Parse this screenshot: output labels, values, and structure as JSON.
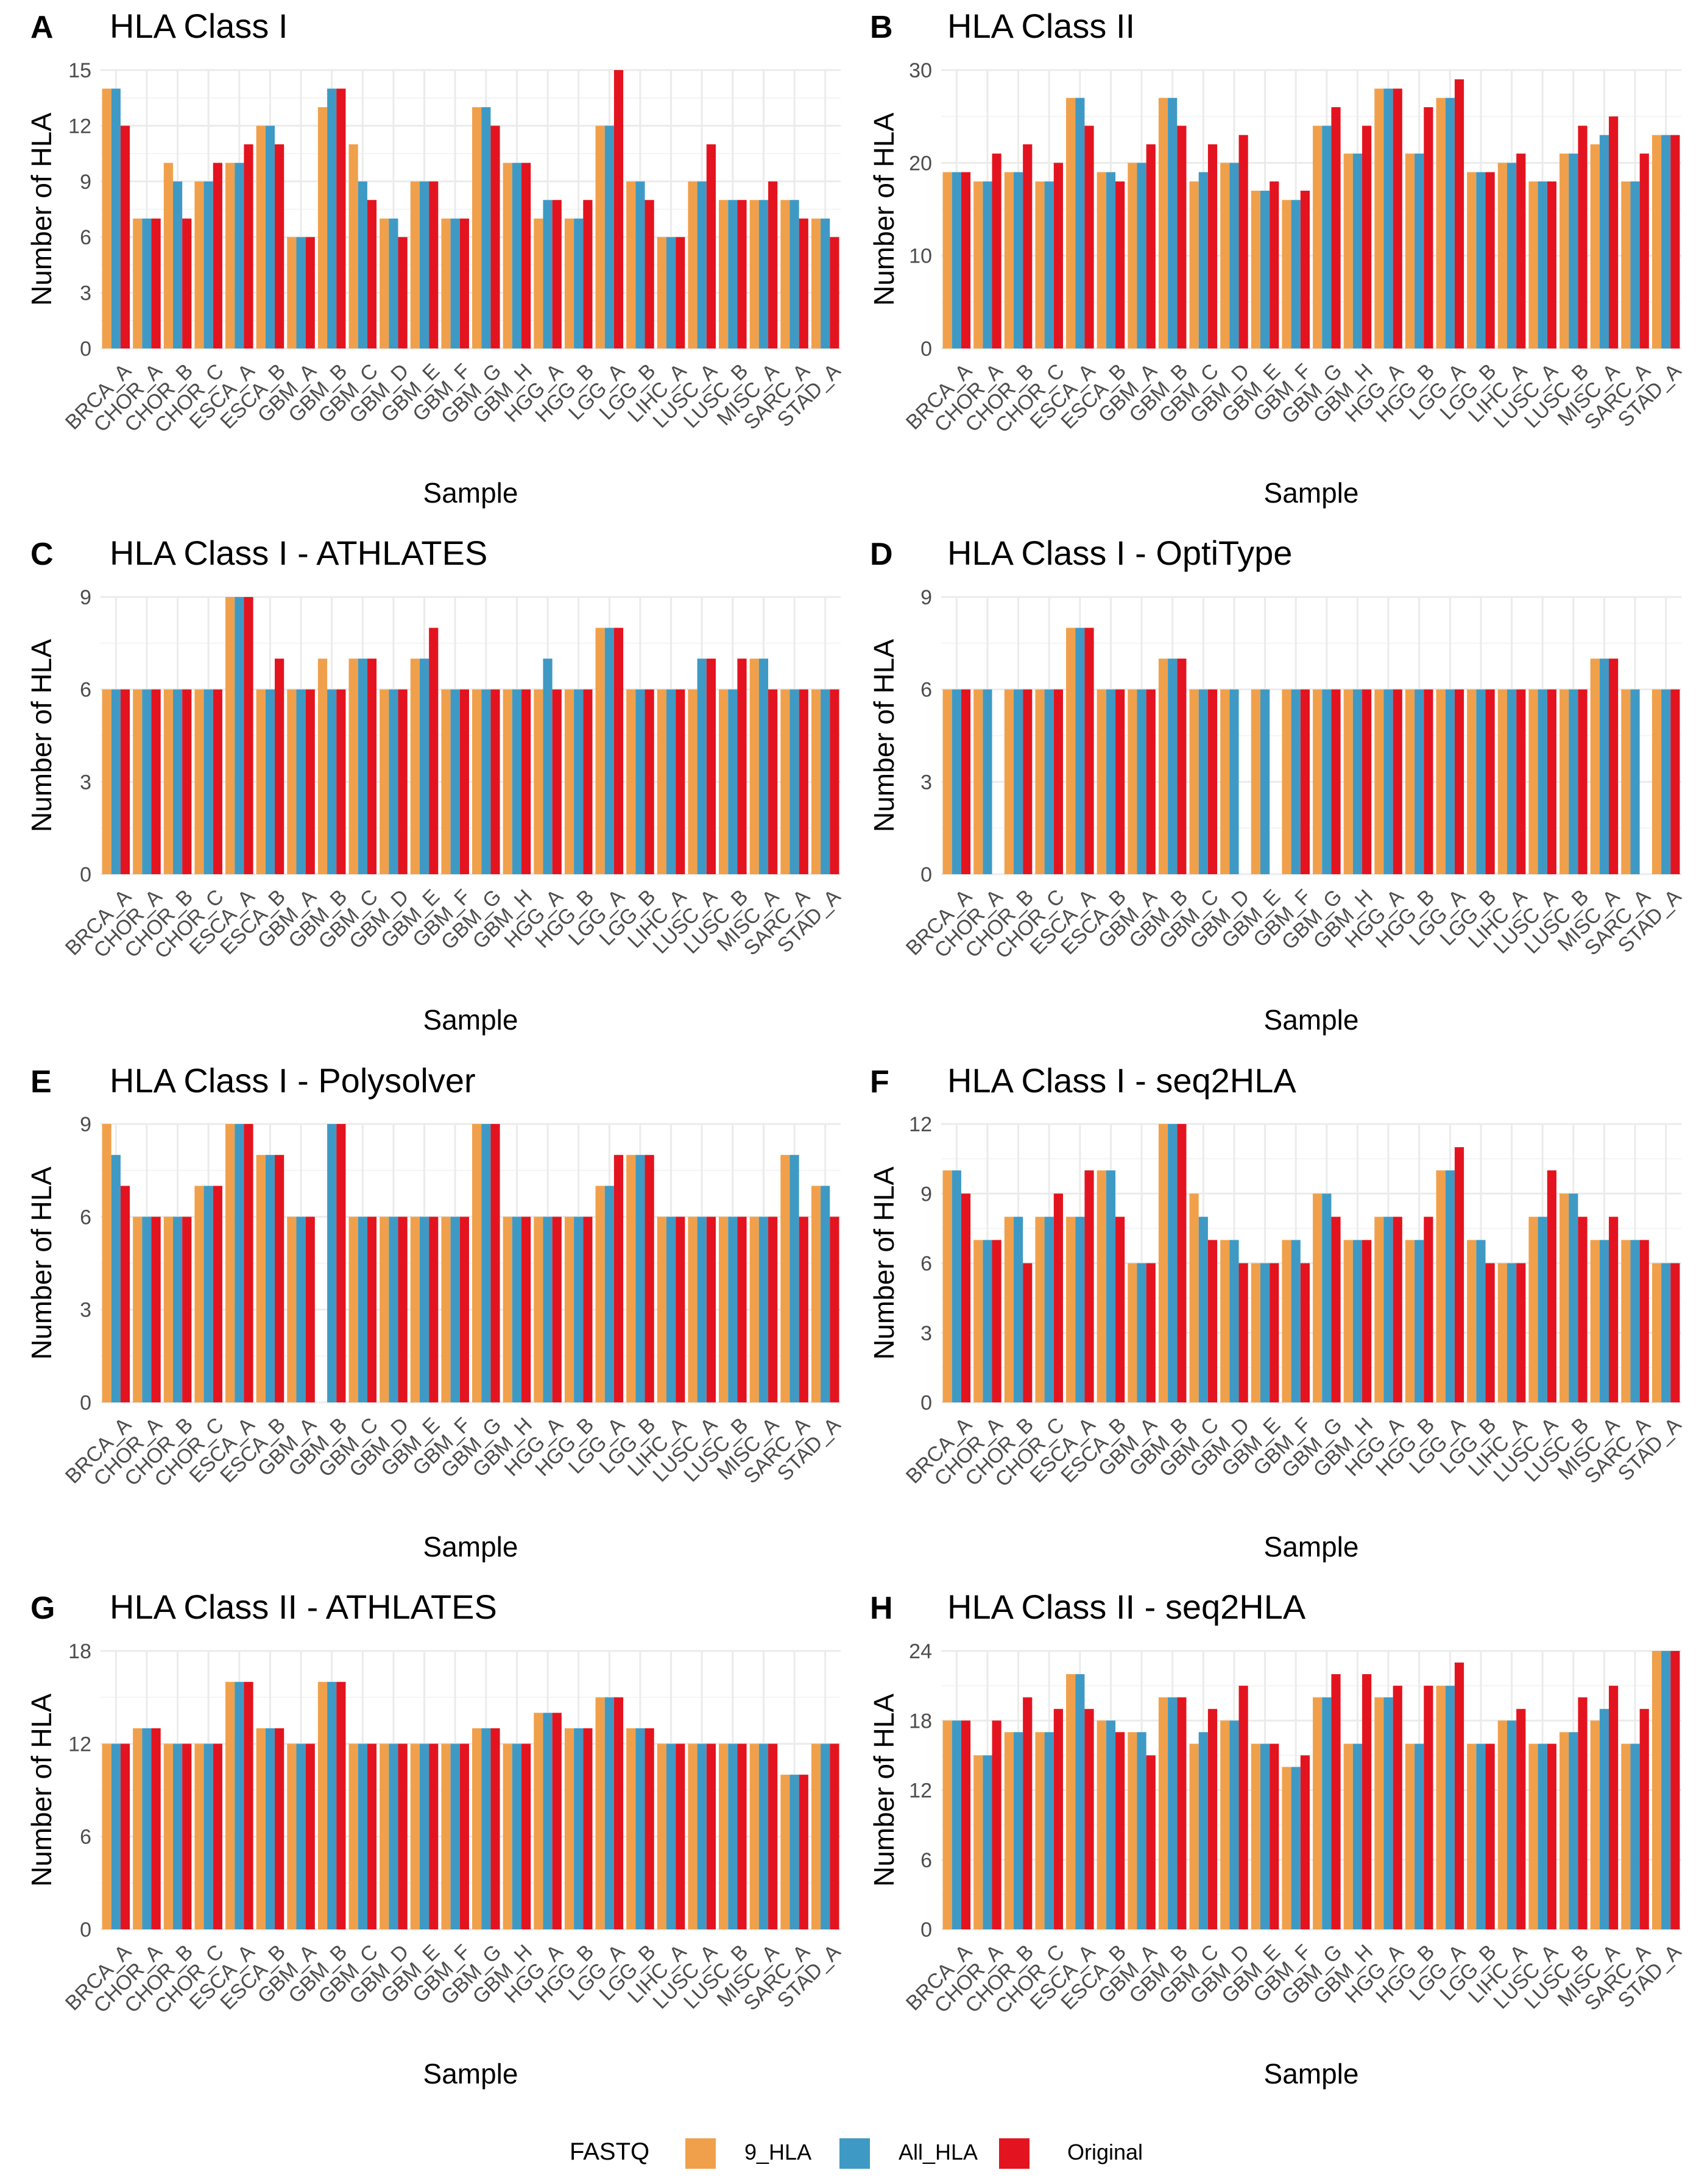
{
  "legend": {
    "title": "FASTQ",
    "entries": [
      {
        "name": "9_HLA",
        "color": "#F0A04B"
      },
      {
        "name": "All_HLA",
        "color": "#3E9AC4"
      },
      {
        "name": "Original",
        "color": "#E3141F"
      }
    ]
  },
  "chart_data": [
    {
      "letter": "A",
      "type": "bar",
      "title": "HLA Class I",
      "xlabel": "Sample",
      "ylabel": "Number of HLA",
      "ylim": [
        0,
        15
      ],
      "yticks": [
        0,
        3,
        6,
        9,
        12,
        15
      ],
      "categories": [
        "BRCA_A",
        "CHOR_A",
        "CHOR_B",
        "CHOR_C",
        "ESCA_A",
        "ESCA_B",
        "GBM_A",
        "GBM_B",
        "GBM_C",
        "GBM_D",
        "GBM_E",
        "GBM_F",
        "GBM_G",
        "GBM_H",
        "HGG_A",
        "HGG_B",
        "LGG_A",
        "LGG_B",
        "LIHC_A",
        "LUSC_A",
        "LUSC_B",
        "MISC_A",
        "SARC_A",
        "STAD_A"
      ],
      "series": [
        {
          "name": "9_HLA",
          "values": [
            14,
            7,
            10,
            9,
            10,
            12,
            6,
            13,
            11,
            7,
            9,
            7,
            13,
            10,
            7,
            7,
            12,
            9,
            6,
            9,
            8,
            8,
            8,
            7
          ]
        },
        {
          "name": "All_HLA",
          "values": [
            14,
            7,
            9,
            9,
            10,
            12,
            6,
            14,
            9,
            7,
            9,
            7,
            13,
            10,
            8,
            7,
            12,
            9,
            6,
            9,
            8,
            8,
            8,
            7
          ]
        },
        {
          "name": "Original",
          "values": [
            12,
            7,
            7,
            10,
            11,
            11,
            6,
            14,
            8,
            6,
            9,
            7,
            12,
            10,
            8,
            8,
            15,
            8,
            6,
            11,
            8,
            9,
            7,
            6
          ]
        }
      ]
    },
    {
      "letter": "B",
      "type": "bar",
      "title": "HLA Class II",
      "xlabel": "Sample",
      "ylabel": "Number of HLA",
      "ylim": [
        0,
        30
      ],
      "yticks": [
        0,
        10,
        20,
        30
      ],
      "categories": [
        "BRCA_A",
        "CHOR_A",
        "CHOR_B",
        "CHOR_C",
        "ESCA_A",
        "ESCA_B",
        "GBM_A",
        "GBM_B",
        "GBM_C",
        "GBM_D",
        "GBM_E",
        "GBM_F",
        "GBM_G",
        "GBM_H",
        "HGG_A",
        "HGG_B",
        "LGG_A",
        "LGG_B",
        "LIHC_A",
        "LUSC_A",
        "LUSC_B",
        "MISC_A",
        "SARC_A",
        "STAD_A"
      ],
      "series": [
        {
          "name": "9_HLA",
          "values": [
            19,
            18,
            19,
            18,
            27,
            19,
            20,
            27,
            18,
            20,
            17,
            16,
            24,
            21,
            28,
            21,
            27,
            19,
            20,
            18,
            21,
            22,
            18,
            23
          ]
        },
        {
          "name": "All_HLA",
          "values": [
            19,
            18,
            19,
            18,
            27,
            19,
            20,
            27,
            19,
            20,
            17,
            16,
            24,
            21,
            28,
            21,
            27,
            19,
            20,
            18,
            21,
            23,
            18,
            23
          ]
        },
        {
          "name": "Original",
          "values": [
            19,
            21,
            22,
            20,
            24,
            18,
            22,
            24,
            22,
            23,
            18,
            17,
            26,
            24,
            28,
            26,
            29,
            19,
            21,
            18,
            24,
            25,
            21,
            23
          ]
        }
      ]
    },
    {
      "letter": "C",
      "type": "bar",
      "title": "HLA Class I - ATHLATES",
      "xlabel": "Sample",
      "ylabel": "Number of HLA",
      "ylim": [
        0,
        9
      ],
      "yticks": [
        0,
        3,
        6,
        9
      ],
      "categories": [
        "BRCA_A",
        "CHOR_A",
        "CHOR_B",
        "CHOR_C",
        "ESCA_A",
        "ESCA_B",
        "GBM_A",
        "GBM_B",
        "GBM_C",
        "GBM_D",
        "GBM_E",
        "GBM_F",
        "GBM_G",
        "GBM_H",
        "HGG_A",
        "HGG_B",
        "LGG_A",
        "LGG_B",
        "LIHC_A",
        "LUSC_A",
        "LUSC_B",
        "MISC_A",
        "SARC_A",
        "STAD_A"
      ],
      "series": [
        {
          "name": "9_HLA",
          "values": [
            6,
            6,
            6,
            6,
            9,
            6,
            6,
            7,
            7,
            6,
            7,
            6,
            6,
            6,
            6,
            6,
            8,
            6,
            6,
            6,
            6,
            7,
            6,
            6
          ]
        },
        {
          "name": "All_HLA",
          "values": [
            6,
            6,
            6,
            6,
            9,
            6,
            6,
            6,
            7,
            6,
            7,
            6,
            6,
            6,
            7,
            6,
            8,
            6,
            6,
            7,
            6,
            7,
            6,
            6
          ]
        },
        {
          "name": "Original",
          "values": [
            6,
            6,
            6,
            6,
            9,
            7,
            6,
            6,
            7,
            6,
            8,
            6,
            6,
            6,
            6,
            6,
            8,
            6,
            6,
            7,
            7,
            6,
            6,
            6
          ]
        }
      ]
    },
    {
      "letter": "D",
      "type": "bar",
      "title": "HLA Class I - OptiType",
      "xlabel": "Sample",
      "ylabel": "Number of HLA",
      "ylim": [
        0,
        9
      ],
      "yticks": [
        0,
        3,
        6,
        9
      ],
      "categories": [
        "BRCA_A",
        "CHOR_A",
        "CHOR_B",
        "CHOR_C",
        "ESCA_A",
        "ESCA_B",
        "GBM_A",
        "GBM_B",
        "GBM_C",
        "GBM_D",
        "GBM_E",
        "GBM_F",
        "GBM_G",
        "GBM_H",
        "HGG_A",
        "HGG_B",
        "LGG_A",
        "LGG_B",
        "LIHC_A",
        "LUSC_A",
        "LUSC_B",
        "MISC_A",
        "SARC_A",
        "STAD_A"
      ],
      "series": [
        {
          "name": "9_HLA",
          "values": [
            6,
            6,
            6,
            6,
            8,
            6,
            6,
            7,
            6,
            6,
            6,
            6,
            6,
            6,
            6,
            6,
            6,
            6,
            6,
            6,
            6,
            7,
            6,
            6
          ]
        },
        {
          "name": "All_HLA",
          "values": [
            6,
            6,
            6,
            6,
            8,
            6,
            6,
            7,
            6,
            6,
            6,
            6,
            6,
            6,
            6,
            6,
            6,
            6,
            6,
            6,
            6,
            7,
            6,
            6
          ]
        },
        {
          "name": "Original",
          "values": [
            6,
            0,
            6,
            6,
            8,
            6,
            6,
            7,
            6,
            0,
            0,
            6,
            6,
            6,
            6,
            6,
            6,
            6,
            6,
            6,
            6,
            7,
            0,
            6
          ]
        }
      ]
    },
    {
      "letter": "E",
      "type": "bar",
      "title": "HLA Class I - Polysolver",
      "xlabel": "Sample",
      "ylabel": "Number of HLA",
      "ylim": [
        0,
        9
      ],
      "yticks": [
        0,
        3,
        6,
        9
      ],
      "categories": [
        "BRCA_A",
        "CHOR_A",
        "CHOR_B",
        "CHOR_C",
        "ESCA_A",
        "ESCA_B",
        "GBM_A",
        "GBM_B",
        "GBM_C",
        "GBM_D",
        "GBM_E",
        "GBM_F",
        "GBM_G",
        "GBM_H",
        "HGG_A",
        "HGG_B",
        "LGG_A",
        "LGG_B",
        "LIHC_A",
        "LUSC_A",
        "LUSC_B",
        "MISC_A",
        "SARC_A",
        "STAD_A"
      ],
      "series": [
        {
          "name": "9_HLA",
          "values": [
            9,
            6,
            6,
            7,
            9,
            8,
            6,
            0,
            6,
            6,
            6,
            6,
            9,
            6,
            6,
            6,
            7,
            8,
            6,
            6,
            6,
            6,
            8,
            7
          ]
        },
        {
          "name": "All_HLA",
          "values": [
            8,
            6,
            6,
            7,
            9,
            8,
            6,
            9,
            6,
            6,
            6,
            6,
            9,
            6,
            6,
            6,
            7,
            8,
            6,
            6,
            6,
            6,
            8,
            7
          ]
        },
        {
          "name": "Original",
          "values": [
            7,
            6,
            6,
            7,
            9,
            8,
            6,
            9,
            6,
            6,
            6,
            6,
            9,
            6,
            6,
            6,
            8,
            8,
            6,
            6,
            6,
            6,
            6,
            6
          ]
        }
      ]
    },
    {
      "letter": "F",
      "type": "bar",
      "title": "HLA Class I - seq2HLA",
      "xlabel": "Sample",
      "ylabel": "Number of HLA",
      "ylim": [
        0,
        12
      ],
      "yticks": [
        0,
        3,
        6,
        9,
        12
      ],
      "categories": [
        "BRCA_A",
        "CHOR_A",
        "CHOR_B",
        "CHOR_C",
        "ESCA_A",
        "ESCA_B",
        "GBM_A",
        "GBM_B",
        "GBM_C",
        "GBM_D",
        "GBM_E",
        "GBM_F",
        "GBM_G",
        "GBM_H",
        "HGG_A",
        "HGG_B",
        "LGG_A",
        "LGG_B",
        "LIHC_A",
        "LUSC_A",
        "LUSC_B",
        "MISC_A",
        "SARC_A",
        "STAD_A"
      ],
      "series": [
        {
          "name": "9_HLA",
          "values": [
            10,
            7,
            8,
            8,
            8,
            10,
            6,
            12,
            9,
            7,
            6,
            7,
            9,
            7,
            8,
            7,
            10,
            7,
            6,
            8,
            9,
            7,
            7,
            6
          ]
        },
        {
          "name": "All_HLA",
          "values": [
            10,
            7,
            8,
            8,
            8,
            10,
            6,
            12,
            8,
            7,
            6,
            7,
            9,
            7,
            8,
            7,
            10,
            7,
            6,
            8,
            9,
            7,
            7,
            6
          ]
        },
        {
          "name": "Original",
          "values": [
            9,
            7,
            6,
            9,
            10,
            8,
            6,
            12,
            7,
            6,
            6,
            6,
            8,
            7,
            8,
            8,
            11,
            6,
            6,
            10,
            8,
            8,
            7,
            6
          ]
        }
      ]
    },
    {
      "letter": "G",
      "type": "bar",
      "title": "HLA Class II - ATHLATES",
      "xlabel": "Sample",
      "ylabel": "Number of HLA",
      "ylim": [
        0,
        18
      ],
      "yticks": [
        0,
        6,
        12,
        18
      ],
      "categories": [
        "BRCA_A",
        "CHOR_A",
        "CHOR_B",
        "CHOR_C",
        "ESCA_A",
        "ESCA_B",
        "GBM_A",
        "GBM_B",
        "GBM_C",
        "GBM_D",
        "GBM_E",
        "GBM_F",
        "GBM_G",
        "GBM_H",
        "HGG_A",
        "HGG_B",
        "LGG_A",
        "LGG_B",
        "LIHC_A",
        "LUSC_A",
        "LUSC_B",
        "MISC_A",
        "SARC_A",
        "STAD_A"
      ],
      "series": [
        {
          "name": "9_HLA",
          "values": [
            12,
            13,
            12,
            12,
            16,
            13,
            12,
            16,
            12,
            12,
            12,
            12,
            13,
            12,
            14,
            13,
            15,
            13,
            12,
            12,
            12,
            12,
            10,
            12
          ]
        },
        {
          "name": "All_HLA",
          "values": [
            12,
            13,
            12,
            12,
            16,
            13,
            12,
            16,
            12,
            12,
            12,
            12,
            13,
            12,
            14,
            13,
            15,
            13,
            12,
            12,
            12,
            12,
            10,
            12
          ]
        },
        {
          "name": "Original",
          "values": [
            12,
            13,
            12,
            12,
            16,
            13,
            12,
            16,
            12,
            12,
            12,
            12,
            13,
            12,
            14,
            13,
            15,
            13,
            12,
            12,
            12,
            12,
            10,
            12
          ]
        }
      ]
    },
    {
      "letter": "H",
      "type": "bar",
      "title": "HLA Class II - seq2HLA",
      "xlabel": "Sample",
      "ylabel": "Number of HLA",
      "ylim": [
        0,
        24
      ],
      "yticks": [
        0,
        6,
        12,
        18,
        24
      ],
      "categories": [
        "BRCA_A",
        "CHOR_A",
        "CHOR_B",
        "CHOR_C",
        "ESCA_A",
        "ESCA_B",
        "GBM_A",
        "GBM_B",
        "GBM_C",
        "GBM_D",
        "GBM_E",
        "GBM_F",
        "GBM_G",
        "GBM_H",
        "HGG_A",
        "HGG_B",
        "LGG_A",
        "LGG_B",
        "LIHC_A",
        "LUSC_A",
        "LUSC_B",
        "MISC_A",
        "SARC_A",
        "STAD_A"
      ],
      "series": [
        {
          "name": "9_HLA",
          "values": [
            18,
            15,
            17,
            17,
            22,
            18,
            17,
            20,
            16,
            18,
            16,
            14,
            20,
            16,
            20,
            16,
            21,
            16,
            18,
            16,
            17,
            18,
            16,
            24
          ]
        },
        {
          "name": "All_HLA",
          "values": [
            18,
            15,
            17,
            17,
            22,
            18,
            17,
            20,
            17,
            18,
            16,
            14,
            20,
            16,
            20,
            16,
            21,
            16,
            18,
            16,
            17,
            19,
            16,
            24
          ]
        },
        {
          "name": "Original",
          "values": [
            18,
            18,
            20,
            19,
            19,
            17,
            15,
            20,
            19,
            21,
            16,
            15,
            22,
            22,
            21,
            21,
            23,
            16,
            19,
            16,
            20,
            21,
            19,
            24
          ]
        }
      ]
    }
  ]
}
